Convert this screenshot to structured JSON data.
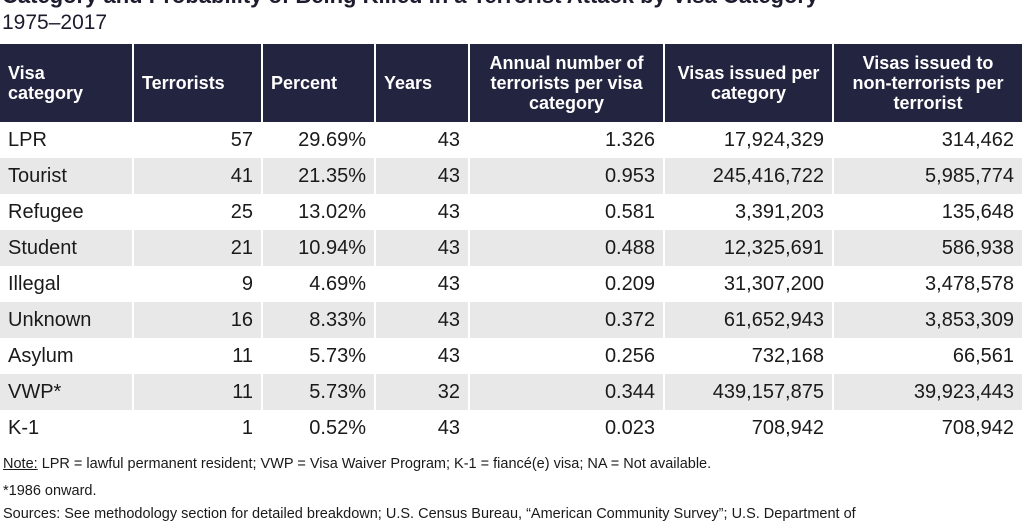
{
  "title": "Category and Probability of Being Killed in a Terrorist Attack by Visa Category",
  "subtitle": "1975–2017",
  "table": {
    "headers": [
      "Visa category",
      "Terrorists",
      "Percent",
      "Years",
      "Annual number of terrorists per visa category",
      "Visas issued per category",
      "Visas issued to non-terrorists per terrorist"
    ],
    "rows": [
      [
        "LPR",
        "57",
        "29.69%",
        "43",
        "1.326",
        "17,924,329",
        "314,462"
      ],
      [
        "Tourist",
        "41",
        "21.35%",
        "43",
        "0.953",
        "245,416,722",
        "5,985,774"
      ],
      [
        "Refugee",
        "25",
        "13.02%",
        "43",
        "0.581",
        "3,391,203",
        "135,648"
      ],
      [
        "Student",
        "21",
        "10.94%",
        "43",
        "0.488",
        "12,325,691",
        "586,938"
      ],
      [
        "Illegal",
        "9",
        "4.69%",
        "43",
        "0.209",
        "31,307,200",
        "3,478,578"
      ],
      [
        "Unknown",
        "16",
        "8.33%",
        "43",
        "0.372",
        "61,652,943",
        "3,853,309"
      ],
      [
        "Asylum",
        "11",
        "5.73%",
        "43",
        "0.256",
        "732,168",
        "66,561"
      ],
      [
        "VWP*",
        "11",
        "5.73%",
        "32",
        "0.344",
        "439,157,875",
        "39,923,443"
      ],
      [
        "K-1",
        "1",
        "0.52%",
        "43",
        "0.023",
        "708,942",
        "708,942"
      ]
    ]
  },
  "notes": {
    "note_label": "Note:",
    "note_text": " LPR = lawful permanent resident; VWP = Visa Waiver Program; K-1 = fiancé(e) visa; NA = Not available.",
    "footnote": "*1986 onward.",
    "sources_cut": "Sources: See methodology section for detailed breakdown; U.S. Census Bureau, “American Community Survey”; U.S. Department of"
  }
}
